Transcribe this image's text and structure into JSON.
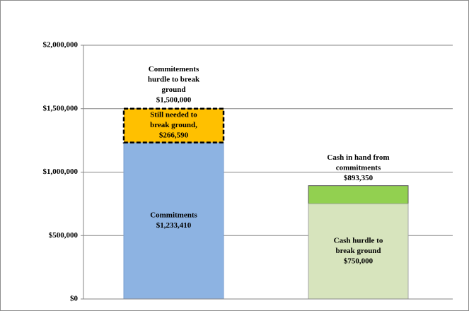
{
  "chart_data": {
    "type": "bar",
    "ylim": [
      0,
      2000000
    ],
    "yticks": [
      {
        "value": 0,
        "label": "$0"
      },
      {
        "value": 500000,
        "label": "$500,000"
      },
      {
        "value": 1000000,
        "label": "$1,000,000"
      },
      {
        "value": 1500000,
        "label": "$1,500,000"
      },
      {
        "value": 2000000,
        "label": "$2,000,000"
      }
    ],
    "grid": true,
    "columns": [
      {
        "mode": "stacked",
        "segments": [
          {
            "name": [
              "Commitments"
            ],
            "value": 1233410,
            "value_label": "$1,233,410",
            "color": "#8db3e2",
            "border": "#7a9fd0",
            "dashed": false,
            "label_position": "inside"
          },
          {
            "name": [
              "Still needed to",
              "break ground,"
            ],
            "value": 266590,
            "value_label": "$266,590",
            "color": "#ffc000",
            "border": "#000000",
            "dashed": true,
            "label_position": "inside"
          }
        ],
        "annotation": {
          "lines": [
            "Commitements",
            "hurdle to break",
            "ground"
          ],
          "value": 1500000,
          "value_label": "$1,500,000"
        }
      },
      {
        "mode": "overlap",
        "segments": [
          {
            "name": [
              "Cash in hand from",
              "commitments"
            ],
            "value": 893350,
            "value_label": "$893,350",
            "color": "#92d050",
            "border": "#595959",
            "dashed": false,
            "label_position": "above"
          },
          {
            "name": [
              "Cash hurdle to",
              "break ground"
            ],
            "value": 750000,
            "value_label": "$750,000",
            "color": "#d7e4bd",
            "border": "#a6a6a6",
            "dashed": false,
            "label_position": "inside"
          }
        ]
      }
    ]
  }
}
